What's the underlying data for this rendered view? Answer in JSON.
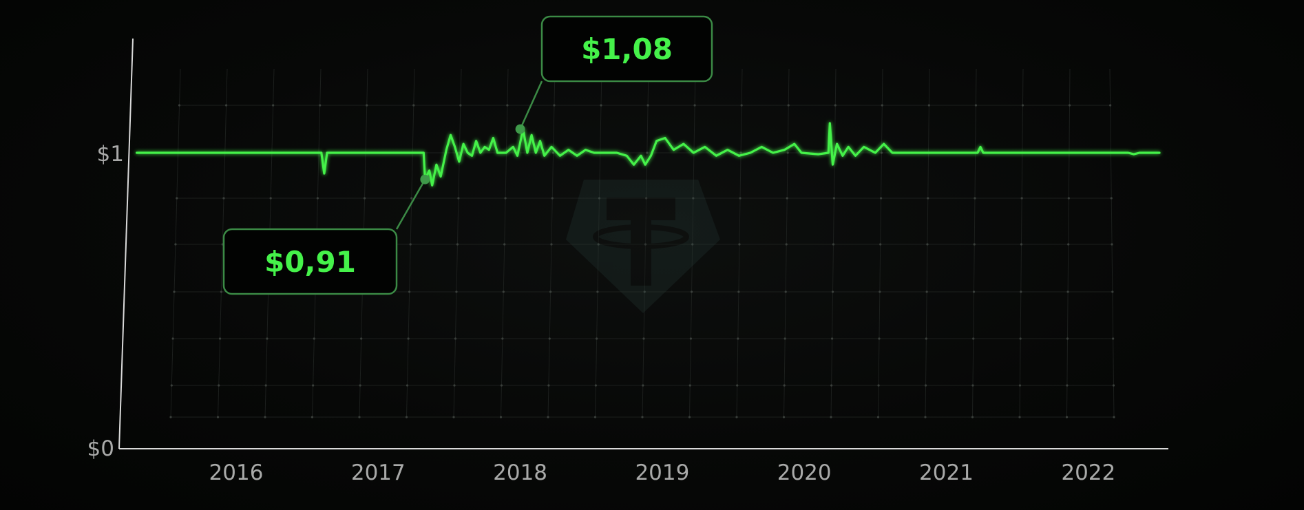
{
  "chart_data": {
    "type": "line",
    "title": "",
    "xlabel": "",
    "ylabel": "",
    "x_ticks": [
      "2016",
      "2017",
      "2018",
      "2019",
      "2020",
      "2021",
      "2022"
    ],
    "y_ticks": [
      "$0",
      "$1"
    ],
    "ylim": [
      0,
      1
    ],
    "grid": true,
    "legend": "none",
    "line_color": "#45f24a",
    "series": [
      {
        "values": [
          [
            2015.3,
            1.0
          ],
          [
            2016.6,
            1.0
          ],
          [
            2016.62,
            0.93
          ],
          [
            2016.64,
            1.0
          ],
          [
            2017.32,
            1.0
          ],
          [
            2017.33,
            0.91
          ],
          [
            2017.36,
            0.94
          ],
          [
            2017.38,
            0.89
          ],
          [
            2017.41,
            0.96
          ],
          [
            2017.44,
            0.92
          ],
          [
            2017.48,
            1.01
          ],
          [
            2017.51,
            1.06
          ],
          [
            2017.54,
            1.02
          ],
          [
            2017.57,
            0.97
          ],
          [
            2017.6,
            1.03
          ],
          [
            2017.63,
            1.0
          ],
          [
            2017.66,
            0.99
          ],
          [
            2017.69,
            1.04
          ],
          [
            2017.72,
            1.0
          ],
          [
            2017.75,
            1.02
          ],
          [
            2017.78,
            1.01
          ],
          [
            2017.81,
            1.05
          ],
          [
            2017.84,
            1.0
          ],
          [
            2017.9,
            1.0
          ],
          [
            2017.95,
            1.02
          ],
          [
            2017.98,
            0.99
          ],
          [
            2018.02,
            1.08
          ],
          [
            2018.05,
            1.0
          ],
          [
            2018.08,
            1.06
          ],
          [
            2018.11,
            1.0
          ],
          [
            2018.14,
            1.04
          ],
          [
            2018.17,
            0.99
          ],
          [
            2018.22,
            1.02
          ],
          [
            2018.28,
            0.99
          ],
          [
            2018.34,
            1.01
          ],
          [
            2018.4,
            0.99
          ],
          [
            2018.46,
            1.01
          ],
          [
            2018.52,
            1.0
          ],
          [
            2018.6,
            1.0
          ],
          [
            2018.68,
            1.0
          ],
          [
            2018.75,
            0.99
          ],
          [
            2018.8,
            0.96
          ],
          [
            2018.85,
            0.99
          ],
          [
            2018.88,
            0.96
          ],
          [
            2018.92,
            0.99
          ],
          [
            2018.96,
            1.04
          ],
          [
            2019.02,
            1.05
          ],
          [
            2019.08,
            1.01
          ],
          [
            2019.15,
            1.03
          ],
          [
            2019.22,
            1.0
          ],
          [
            2019.3,
            1.02
          ],
          [
            2019.38,
            0.99
          ],
          [
            2019.46,
            1.01
          ],
          [
            2019.54,
            0.99
          ],
          [
            2019.62,
            1.0
          ],
          [
            2019.7,
            1.02
          ],
          [
            2019.78,
            1.0
          ],
          [
            2019.86,
            1.01
          ],
          [
            2019.93,
            1.03
          ],
          [
            2019.98,
            1.0
          ],
          [
            2020.1,
            0.995
          ],
          [
            2020.17,
            1.0
          ],
          [
            2020.18,
            1.1
          ],
          [
            2020.2,
            0.96
          ],
          [
            2020.23,
            1.03
          ],
          [
            2020.27,
            0.99
          ],
          [
            2020.31,
            1.02
          ],
          [
            2020.36,
            0.99
          ],
          [
            2020.42,
            1.02
          ],
          [
            2020.5,
            1.0
          ],
          [
            2020.56,
            1.03
          ],
          [
            2020.62,
            1.0
          ],
          [
            2020.74,
            1.0
          ],
          [
            2021.22,
            1.0
          ],
          [
            2021.24,
            1.02
          ],
          [
            2021.26,
            1.0
          ],
          [
            2022.28,
            1.0
          ],
          [
            2022.32,
            0.995
          ],
          [
            2022.36,
            1.0
          ],
          [
            2022.5,
            1.0
          ]
        ]
      }
    ],
    "annotations": [
      {
        "label": "$0,91",
        "x": 2017.33,
        "y": 0.91
      },
      {
        "label": "$1,08",
        "x": 2018.0,
        "y": 1.08
      }
    ]
  }
}
